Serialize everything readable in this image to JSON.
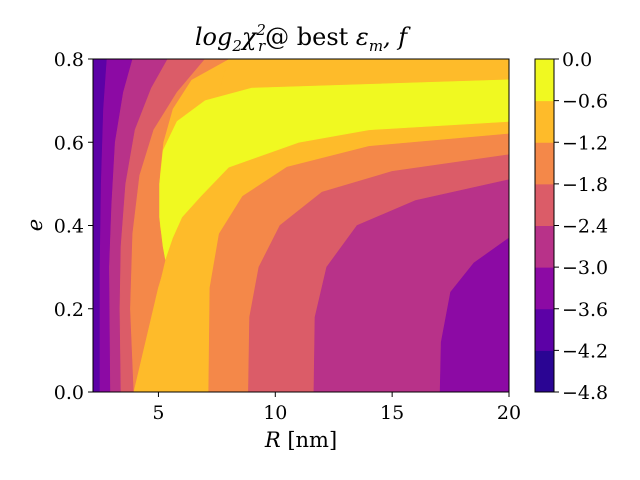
{
  "chart_data": {
    "type": "contour",
    "title": "log₂χ²ᵣ@ best εₘ, f",
    "title_parts": {
      "log": "log",
      "log_sub": "2",
      "chi": "χ",
      "chi_sup": "2",
      "chi_sub": "r",
      "rest": "@ best ",
      "eps": "ε",
      "eps_sub": "m",
      "tail": ", f"
    },
    "xlabel": "R [nm]",
    "xlabel_parts": {
      "var": "R",
      "unit": " [nm]"
    },
    "ylabel": "e",
    "xlim": [
      2.2,
      20
    ],
    "ylim": [
      0.0,
      0.8
    ],
    "xticks": [
      5,
      10,
      15,
      20
    ],
    "yticks": [
      0.0,
      0.2,
      0.4,
      0.6,
      0.8
    ],
    "xtick_labels": [
      "5",
      "10",
      "15",
      "20"
    ],
    "ytick_labels": [
      "0.0",
      "0.2",
      "0.4",
      "0.6",
      "0.8"
    ],
    "colormap": "plasma",
    "levels": [
      -4.8,
      -4.2,
      -3.6,
      -3.0,
      -2.4,
      -1.8,
      -1.2,
      -0.6,
      0.0
    ],
    "colorbar_tick_labels": [
      "−4.8",
      "−4.2",
      "−3.6",
      "−3.0",
      "−2.4",
      "−1.8",
      "−1.2",
      "−0.6",
      "0.0"
    ],
    "band_colors": [
      "#2a0593",
      "#5c01a6",
      "#8c0aa4",
      "#b83289",
      "#db5c68",
      "#f48849",
      "#febb2a",
      "#f0f921"
    ],
    "regions": [
      {
        "level_range": [
          -4.2,
          -3.6
        ],
        "color": "#5c01a6",
        "points": [
          [
            2.2,
            0.8
          ],
          [
            2.8,
            0.8
          ],
          [
            2.65,
            0.68
          ],
          [
            2.55,
            0.5
          ],
          [
            2.5,
            0.3
          ],
          [
            2.5,
            0.0
          ],
          [
            2.2,
            0.0
          ]
        ]
      },
      {
        "level_range": [
          -3.6,
          -3.0
        ],
        "color": "#8c0aa4",
        "points": [
          [
            2.8,
            0.8
          ],
          [
            3.9,
            0.8
          ],
          [
            3.5,
            0.72
          ],
          [
            3.15,
            0.6
          ],
          [
            3.0,
            0.45
          ],
          [
            2.9,
            0.3
          ],
          [
            2.95,
            0.0
          ],
          [
            2.5,
            0.0
          ],
          [
            2.5,
            0.3
          ],
          [
            2.55,
            0.5
          ],
          [
            2.65,
            0.68
          ]
        ]
      },
      {
        "level_range": [
          -3.0,
          -2.4
        ],
        "color": "#b83289",
        "points": [
          [
            3.9,
            0.8
          ],
          [
            5.4,
            0.8
          ],
          [
            4.7,
            0.73
          ],
          [
            4.0,
            0.63
          ],
          [
            3.6,
            0.5
          ],
          [
            3.4,
            0.35
          ],
          [
            3.35,
            0.2
          ],
          [
            3.4,
            0.0
          ],
          [
            2.95,
            0.0
          ],
          [
            2.9,
            0.3
          ],
          [
            3.0,
            0.45
          ],
          [
            3.15,
            0.6
          ],
          [
            3.5,
            0.72
          ]
        ]
      },
      {
        "level_range": [
          -2.4,
          -1.8
        ],
        "color": "#db5c68",
        "points": [
          [
            5.4,
            0.8
          ],
          [
            7.0,
            0.8
          ],
          [
            5.8,
            0.72
          ],
          [
            4.8,
            0.63
          ],
          [
            4.2,
            0.52
          ],
          [
            3.9,
            0.38
          ],
          [
            3.8,
            0.2
          ],
          [
            3.95,
            0.0
          ],
          [
            3.4,
            0.0
          ],
          [
            3.35,
            0.2
          ],
          [
            3.4,
            0.35
          ],
          [
            3.6,
            0.5
          ],
          [
            4.0,
            0.63
          ],
          [
            4.7,
            0.73
          ]
        ]
      },
      {
        "level_range": [
          -1.8,
          -1.2
        ],
        "color": "#f48849",
        "points": [
          [
            7.0,
            0.8
          ],
          [
            8.0,
            0.8
          ],
          [
            6.4,
            0.75
          ],
          [
            5.6,
            0.68
          ],
          [
            5.2,
            0.6
          ],
          [
            5.05,
            0.52
          ],
          [
            5.05,
            0.4
          ],
          [
            5.3,
            0.32
          ],
          [
            5.0,
            0.25
          ],
          [
            3.95,
            0.0
          ],
          [
            3.8,
            0.2
          ],
          [
            3.9,
            0.38
          ],
          [
            4.2,
            0.52
          ],
          [
            4.8,
            0.63
          ],
          [
            5.8,
            0.72
          ]
        ]
      },
      {
        "level_range": [
          -1.2,
          -0.6
        ],
        "color": "#febb2a",
        "points": [
          [
            8.0,
            0.8
          ],
          [
            20,
            0.8
          ],
          [
            20,
            0.75
          ],
          [
            9.0,
            0.73
          ],
          [
            7.0,
            0.7
          ],
          [
            5.8,
            0.65
          ],
          [
            5.2,
            0.58
          ],
          [
            5.05,
            0.5
          ],
          [
            5.05,
            0.42
          ],
          [
            5.2,
            0.35
          ],
          [
            5.3,
            0.32
          ],
          [
            5.6,
            0.37
          ],
          [
            6.0,
            0.42
          ],
          [
            6.8,
            0.47
          ],
          [
            8.0,
            0.54
          ],
          [
            11.0,
            0.6
          ],
          [
            14.0,
            0.63
          ],
          [
            20,
            0.65
          ],
          [
            20,
            0.62
          ],
          [
            14.0,
            0.59
          ],
          [
            10.5,
            0.54
          ],
          [
            8.6,
            0.47
          ],
          [
            7.6,
            0.38
          ],
          [
            7.2,
            0.25
          ],
          [
            7.15,
            0.0
          ],
          [
            3.95,
            0.0
          ],
          [
            5.0,
            0.25
          ]
        ]
      },
      {
        "level_range": [
          -0.6,
          0.0
        ],
        "color": "#f0f921",
        "points": [
          [
            20,
            0.75
          ],
          [
            20,
            0.65
          ],
          [
            14.0,
            0.63
          ],
          [
            11.0,
            0.6
          ],
          [
            8.0,
            0.54
          ],
          [
            6.8,
            0.47
          ],
          [
            6.0,
            0.42
          ],
          [
            5.6,
            0.37
          ],
          [
            5.3,
            0.32
          ],
          [
            5.2,
            0.35
          ],
          [
            5.05,
            0.42
          ],
          [
            5.05,
            0.5
          ],
          [
            5.2,
            0.58
          ],
          [
            5.8,
            0.65
          ],
          [
            7.0,
            0.7
          ],
          [
            9.0,
            0.73
          ]
        ]
      },
      {
        "level_range": [
          -1.8,
          -1.2
        ],
        "color": "#f48849",
        "points": [
          [
            20,
            0.62
          ],
          [
            20,
            0.57
          ],
          [
            15.0,
            0.53
          ],
          [
            12.0,
            0.48
          ],
          [
            10.2,
            0.4
          ],
          [
            9.3,
            0.3
          ],
          [
            8.9,
            0.18
          ],
          [
            8.85,
            0.0
          ],
          [
            7.15,
            0.0
          ],
          [
            7.2,
            0.25
          ],
          [
            7.6,
            0.38
          ],
          [
            8.6,
            0.47
          ],
          [
            10.5,
            0.54
          ],
          [
            14.0,
            0.59
          ]
        ]
      },
      {
        "level_range": [
          -2.4,
          -1.8
        ],
        "color": "#db5c68",
        "points": [
          [
            20,
            0.57
          ],
          [
            20,
            0.51
          ],
          [
            16.0,
            0.46
          ],
          [
            13.5,
            0.4
          ],
          [
            12.2,
            0.3
          ],
          [
            11.7,
            0.18
          ],
          [
            11.65,
            0.0
          ],
          [
            8.85,
            0.0
          ],
          [
            8.9,
            0.18
          ],
          [
            9.3,
            0.3
          ],
          [
            10.2,
            0.4
          ],
          [
            12.0,
            0.48
          ],
          [
            15.0,
            0.53
          ]
        ]
      },
      {
        "level_range": [
          -3.0,
          -2.4
        ],
        "color": "#b83289",
        "points": [
          [
            20,
            0.51
          ],
          [
            20,
            0.37
          ],
          [
            18.5,
            0.31
          ],
          [
            17.5,
            0.24
          ],
          [
            17.1,
            0.12
          ],
          [
            17.05,
            0.0
          ],
          [
            11.65,
            0.0
          ],
          [
            11.7,
            0.18
          ],
          [
            12.2,
            0.3
          ],
          [
            13.5,
            0.4
          ],
          [
            16.0,
            0.46
          ]
        ]
      },
      {
        "level_range": [
          -3.6,
          -3.0
        ],
        "color": "#8c0aa4",
        "points": [
          [
            20,
            0.37
          ],
          [
            20,
            0.0
          ],
          [
            17.05,
            0.0
          ],
          [
            17.1,
            0.12
          ],
          [
            17.5,
            0.24
          ],
          [
            18.5,
            0.31
          ]
        ]
      }
    ]
  }
}
